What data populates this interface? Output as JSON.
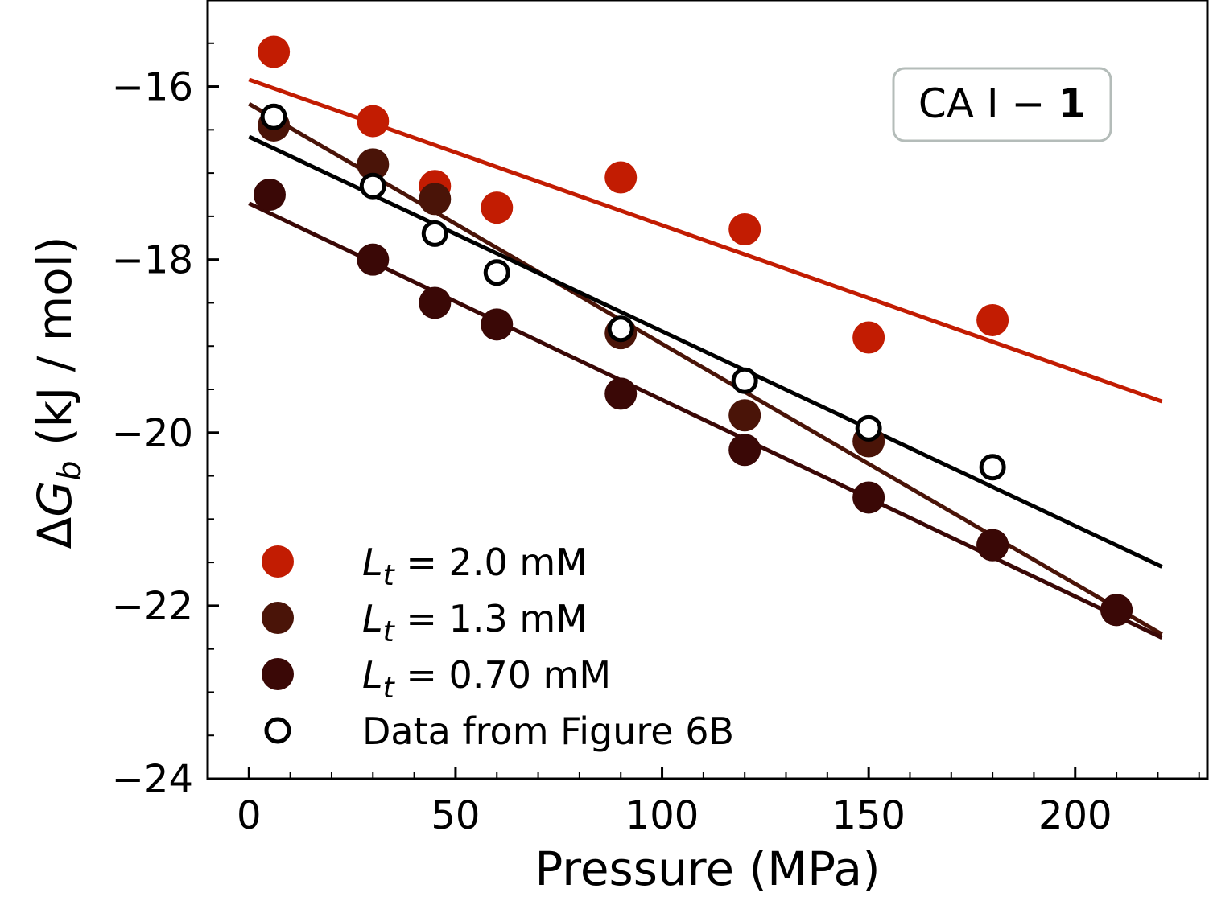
{
  "chart_data": {
    "type": "scatter",
    "title": "",
    "xlabel": "Pressure (MPa)",
    "ylabel": "ΔG_b (kJ / mol)",
    "ylabel_parts": {
      "delta": "Δ",
      "symbol": "G",
      "subscript": "b",
      "units": " (kJ / mol)"
    },
    "xlim": [
      -10,
      232
    ],
    "ylim": [
      -24,
      -15
    ],
    "x_ticks": [
      0,
      50,
      100,
      150,
      200
    ],
    "y_ticks": [
      -16,
      -18,
      -20,
      -22,
      -24
    ],
    "x_tick_labels": [
      "0",
      "50",
      "100",
      "150",
      "200"
    ],
    "y_tick_labels": [
      "−16",
      "−18",
      "−20",
      "−22",
      "−24"
    ],
    "annotation": {
      "prefix": "CA I − ",
      "bold": "1"
    },
    "series": [
      {
        "name": "L_t = 2.0 mM",
        "label_value": "2.0 mM",
        "marker": "filled",
        "color": "#c21c02",
        "x": [
          6,
          30,
          45,
          60,
          90,
          120,
          150,
          180
        ],
        "y": [
          -15.6,
          -16.4,
          -17.15,
          -17.4,
          -17.05,
          -17.65,
          -18.9,
          -18.7
        ],
        "fit": {
          "x": [
            0,
            221
          ],
          "y": [
            -15.92,
            -19.64
          ]
        }
      },
      {
        "name": "L_t = 1.3 mM",
        "label_value": "1.3 mM",
        "marker": "filled",
        "color": "#4a1408",
        "x": [
          6,
          30,
          45,
          90,
          120,
          150,
          180,
          210
        ],
        "y": [
          -16.45,
          -16.9,
          -17.3,
          -18.85,
          -19.8,
          -20.1,
          -21.3,
          -22.05
        ],
        "fit": {
          "x": [
            0,
            221
          ],
          "y": [
            -16.2,
            -22.33
          ]
        }
      },
      {
        "name": "L_t = 0.70 mM",
        "label_value": "0.70 mM",
        "marker": "filled",
        "color": "#3a0806",
        "x": [
          5,
          30,
          45,
          60,
          90,
          120,
          150,
          180,
          210
        ],
        "y": [
          -17.25,
          -18.0,
          -18.5,
          -18.75,
          -19.55,
          -20.2,
          -20.75,
          -21.3,
          -22.05
        ],
        "fit": {
          "x": [
            0,
            221
          ],
          "y": [
            -17.35,
            -22.37
          ]
        }
      },
      {
        "name": "Data from Figure 6B",
        "label_value": "Data from Figure 6B",
        "marker": "open",
        "color": "#000000",
        "x": [
          6,
          30,
          45,
          60,
          90,
          120,
          150,
          180
        ],
        "y": [
          -16.35,
          -17.15,
          -17.7,
          -18.15,
          -18.8,
          -19.4,
          -19.95,
          -20.4
        ],
        "fit": {
          "x": [
            0,
            221
          ],
          "y": [
            -16.58,
            -21.55
          ]
        }
      }
    ]
  }
}
